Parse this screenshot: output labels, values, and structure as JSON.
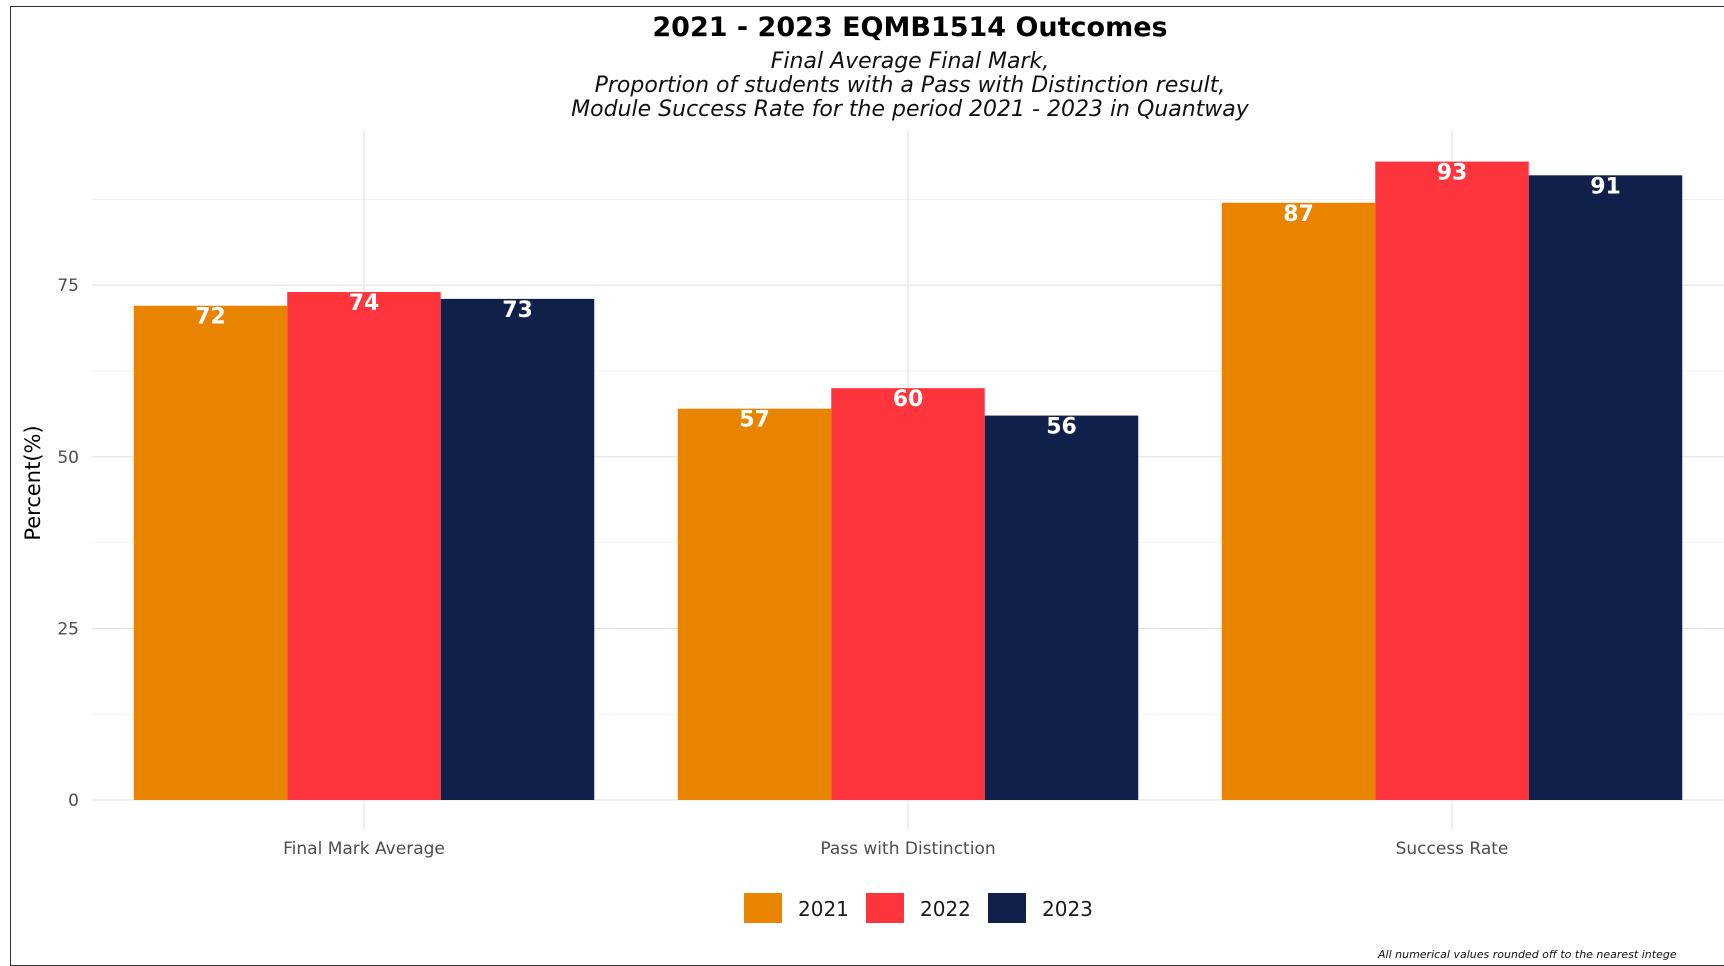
{
  "chart_data": {
    "type": "bar",
    "title": "2021 - 2023 EQMB1514 Outcomes",
    "subtitle_lines": [
      "Final Average Final Mark,",
      "Proportion of students with a Pass with Distinction result,",
      "Module Success Rate for the period 2021 - 2023 in Quantway"
    ],
    "categories": [
      "Final Mark Average",
      "Pass with Distinction",
      "Success Rate"
    ],
    "series": [
      {
        "name": "2021",
        "color": "#E88400",
        "values": [
          72,
          57,
          87
        ]
      },
      {
        "name": "2022",
        "color": "#FF353D",
        "values": [
          74,
          60,
          93
        ]
      },
      {
        "name": "2023",
        "color": "#11204B",
        "values": [
          73,
          56,
          91
        ]
      }
    ],
    "xlabel": "",
    "ylabel": "Percent(%)",
    "ylim": [
      0,
      97.6
    ],
    "yticks": [
      0,
      25,
      50,
      75
    ],
    "grid": true,
    "legend_position": "bottom",
    "caption": "All numerical values rounded off to the nearest intege"
  }
}
